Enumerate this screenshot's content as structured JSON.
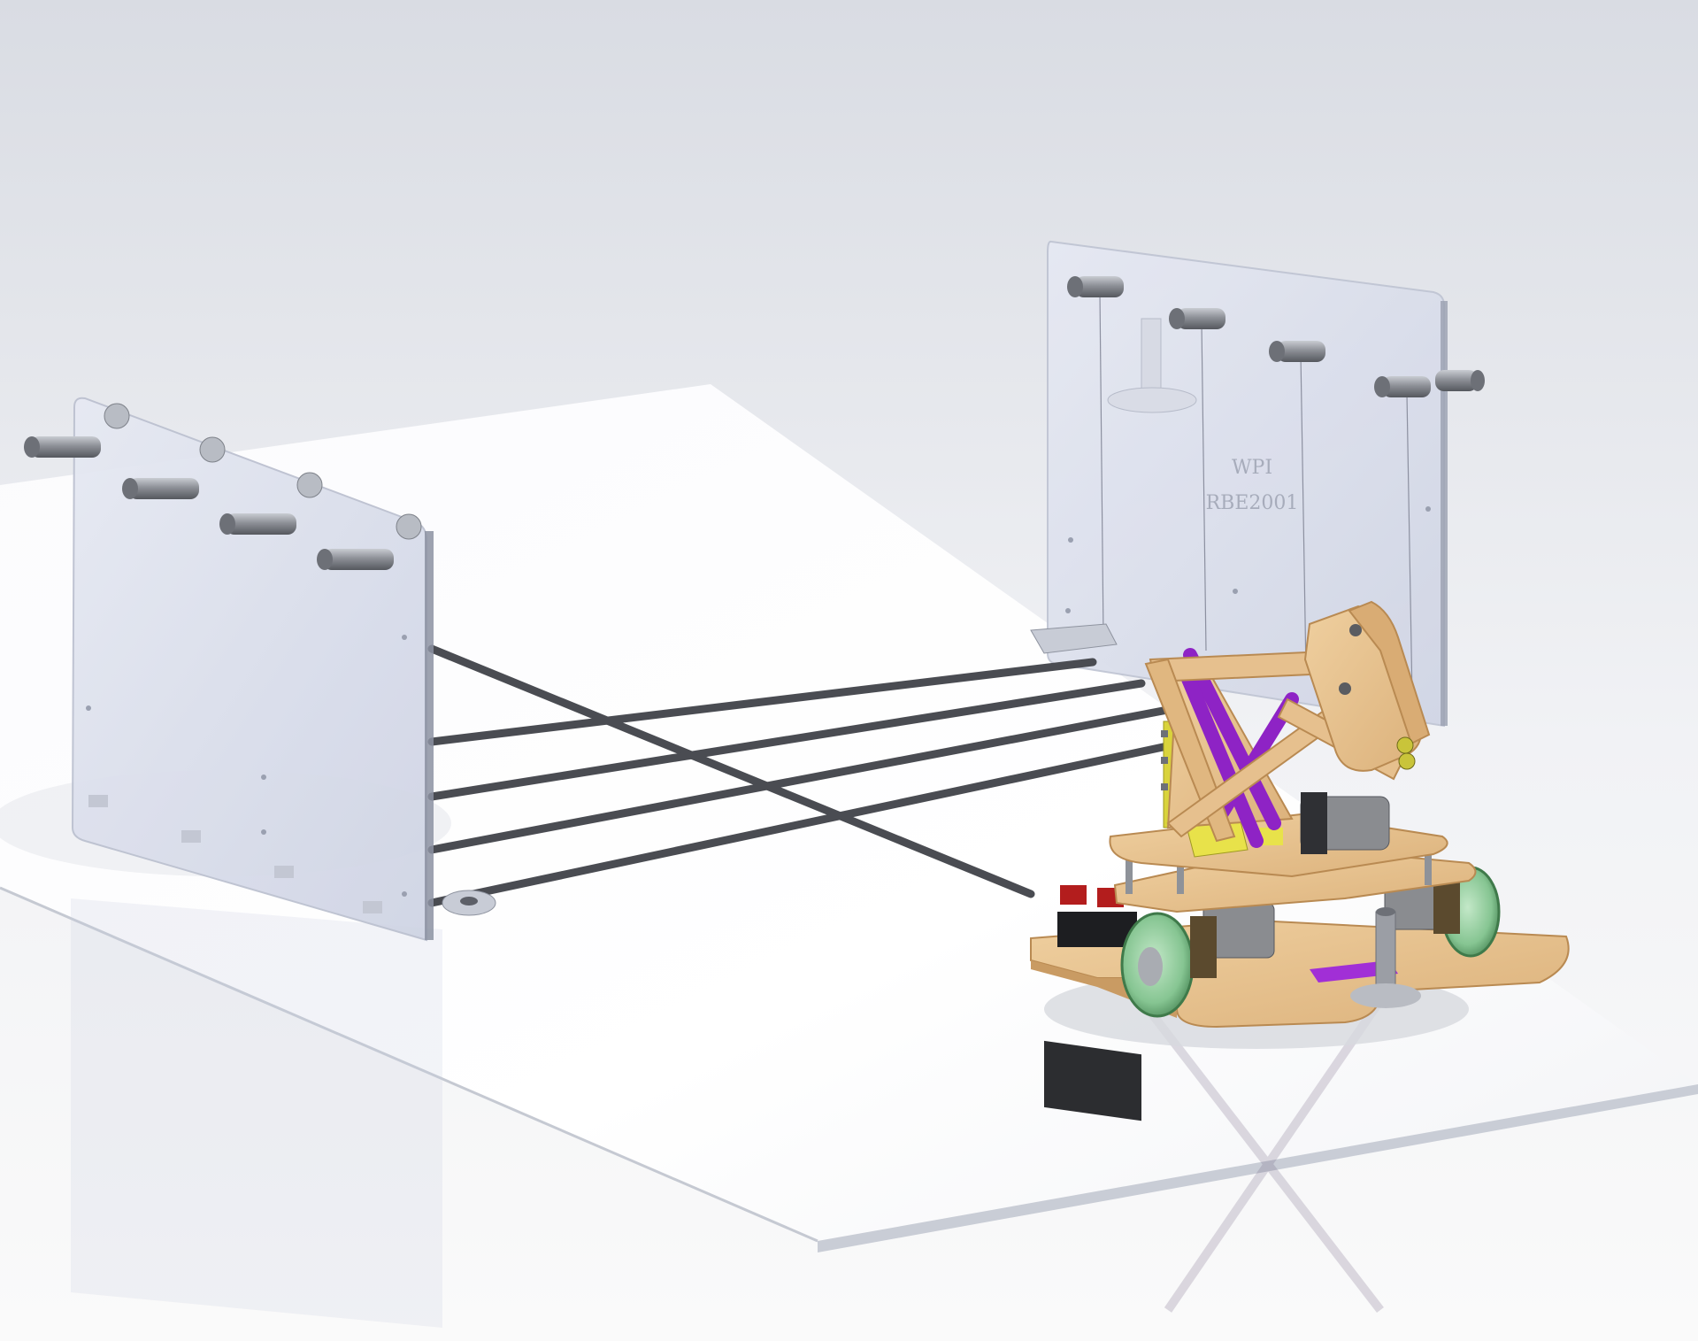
{
  "scene": {
    "panel_engraving": {
      "line1": "WPI",
      "line2": "RBE2001"
    },
    "colors": {
      "background_top": "#dfe2e8",
      "floor": "#ffffff",
      "acrylic_panel": "#dde1ee",
      "steel_track": "#4a4c52",
      "standoff": "#8e9299",
      "wood": "#e6c08e",
      "wood_edge": "#b98a52",
      "purple_parts": "#9b2fd0",
      "yellow_parts": "#e8e24a",
      "wheel_green": "#8fcb9a",
      "motor_grey": "#8a8c90"
    },
    "icons": [
      "robot-3d-model",
      "acrylic-panel",
      "track-rod",
      "storage-peg"
    ]
  }
}
